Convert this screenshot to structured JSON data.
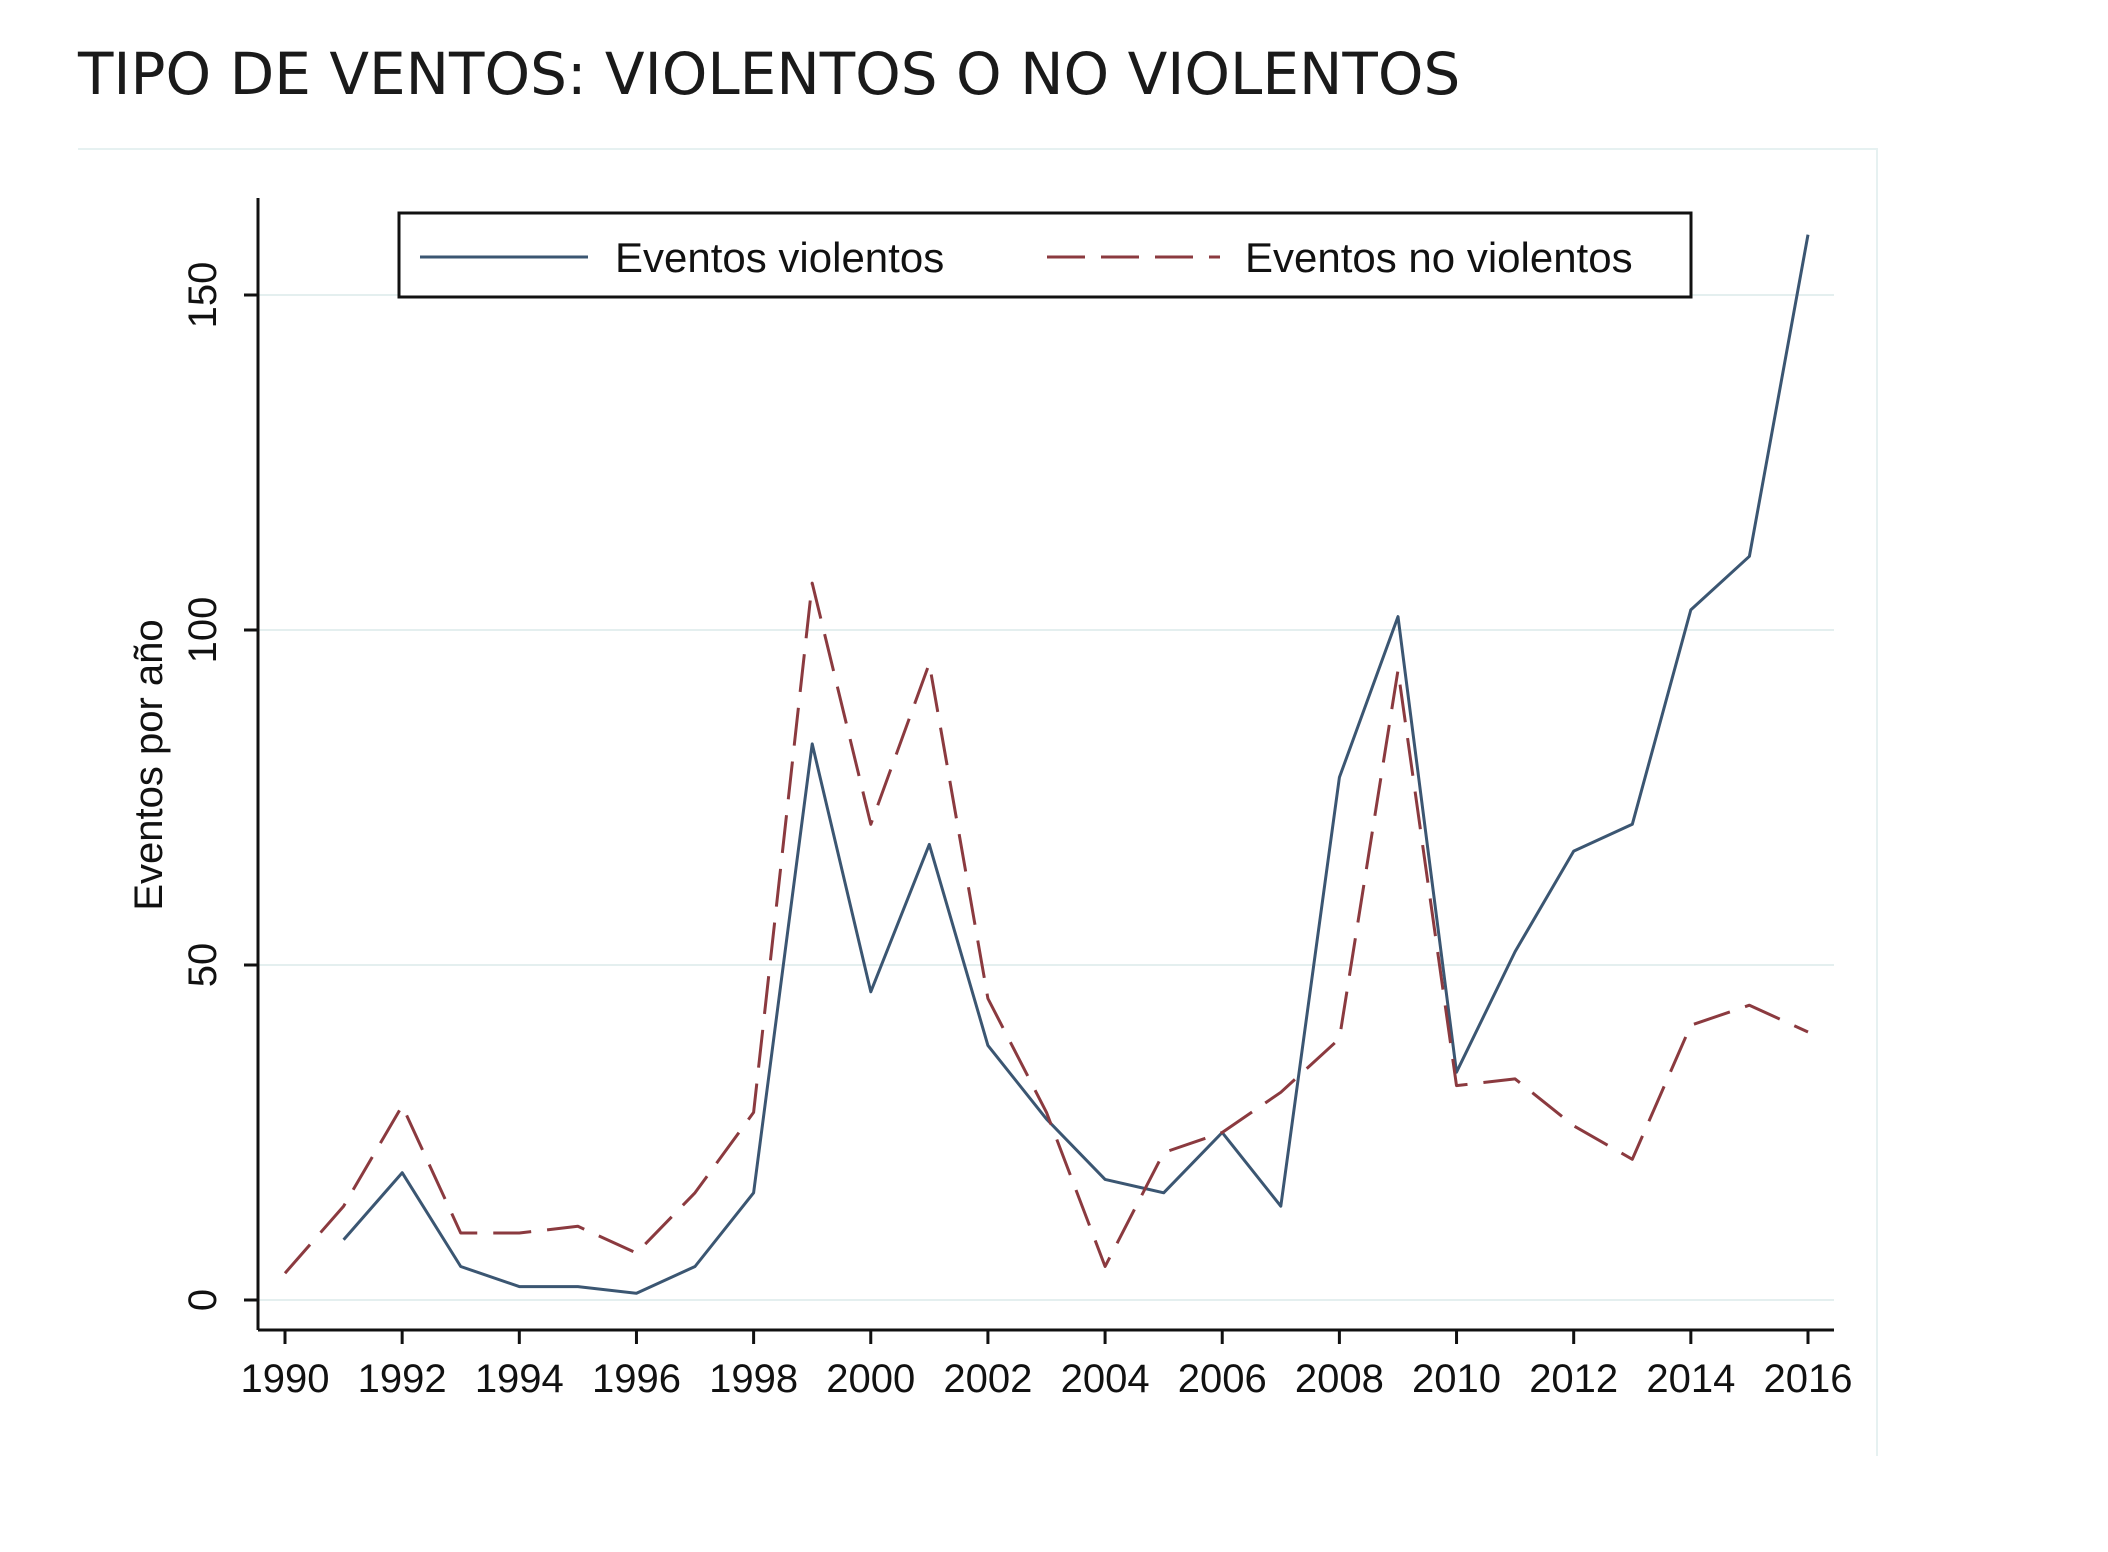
{
  "page": {
    "title": "TIPO DE VENTOS: VIOLENTOS O NO VIOLENTOS"
  },
  "chart_data": {
    "type": "line",
    "title": "",
    "xlabel": "",
    "ylabel": "Eventos por año",
    "xlim": [
      1990,
      2016
    ],
    "ylim": [
      0,
      160
    ],
    "x_ticks": [
      1990,
      1992,
      1994,
      1996,
      1998,
      2000,
      2002,
      2004,
      2006,
      2008,
      2010,
      2012,
      2014,
      2016
    ],
    "y_ticks": [
      0,
      50,
      100,
      150
    ],
    "grid": "horizontal",
    "legend_position": "top",
    "series": [
      {
        "name": "Eventos violentos",
        "color": "#3b5672",
        "style": "solid",
        "x": [
          1991,
          1992,
          1993,
          1994,
          1995,
          1996,
          1997,
          1998,
          1999,
          2000,
          2001,
          2002,
          2003,
          2004,
          2005,
          2006,
          2007,
          2008,
          2009,
          2010,
          2011,
          2012,
          2013,
          2014,
          2015,
          2016
        ],
        "values": [
          9,
          19,
          5,
          2,
          2,
          1,
          5,
          16,
          83,
          46,
          68,
          38,
          27,
          18,
          16,
          25,
          14,
          78,
          102,
          34,
          52,
          67,
          71,
          103,
          111,
          159
        ]
      },
      {
        "name": "Eventos no violentos",
        "color": "#8b3a3f",
        "style": "dashed",
        "x": [
          1990,
          1991,
          1992,
          1993,
          1994,
          1995,
          1996,
          1997,
          1998,
          1999,
          2000,
          2001,
          2002,
          2003,
          2004,
          2005,
          2006,
          2007,
          2008,
          2009,
          2010,
          2011,
          2012,
          2013,
          2014,
          2015,
          2016
        ],
        "values": [
          4,
          14,
          29,
          10,
          10,
          11,
          7,
          16,
          28,
          107,
          71,
          95,
          45,
          28,
          5,
          22,
          25,
          31,
          39,
          94,
          32,
          33,
          26,
          21,
          41,
          44,
          40
        ]
      }
    ]
  }
}
